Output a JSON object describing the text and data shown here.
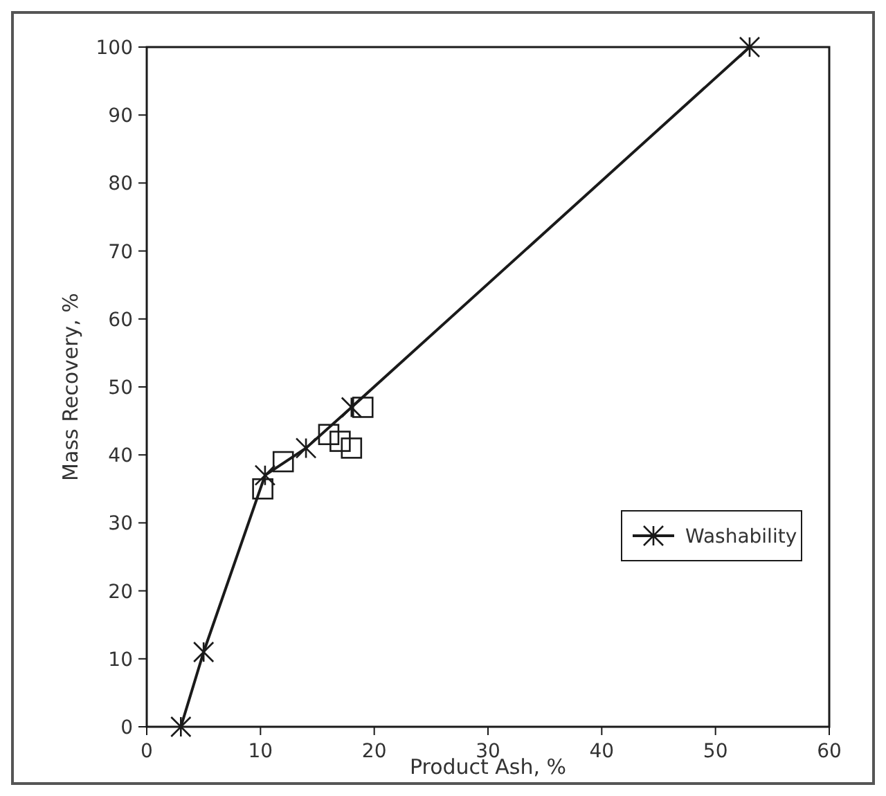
{
  "chart_data": {
    "type": "line",
    "xlabel": "Product Ash, %",
    "ylabel": "Mass Recovery, %",
    "xlim": [
      0,
      60
    ],
    "xticks": [
      0,
      10,
      20,
      30,
      40,
      50,
      60
    ],
    "ylim": [
      0,
      100
    ],
    "yticks": [
      0,
      10,
      20,
      30,
      40,
      50,
      60,
      70,
      80,
      90,
      100
    ],
    "grid": false,
    "legend": "bottom right",
    "series": [
      {
        "name": "Washability",
        "color": "#1a1a1a",
        "marker": "cross",
        "x": [
          3,
          5,
          10.4,
          14,
          18,
          53
        ],
        "values": [
          0,
          11,
          37,
          41,
          47,
          100
        ]
      },
      {
        "type": "scatter",
        "color": "#1a1a1a",
        "marker": "square",
        "x": [
          10.2,
          12,
          16,
          17,
          18,
          19
        ],
        "values": [
          35,
          39,
          43,
          42,
          41,
          47
        ]
      }
    ]
  }
}
